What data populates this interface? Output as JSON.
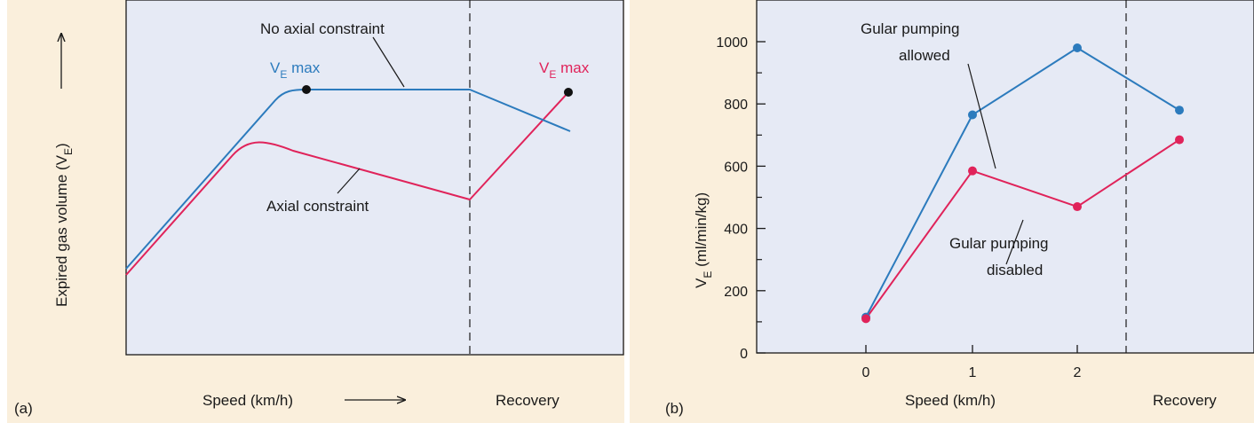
{
  "colors": {
    "blue": "#2c7bbd",
    "red": "#e0235a",
    "panel_background": "#faefdc",
    "plot_background": "#e6eaf5",
    "text": "#1a1a1a"
  },
  "chart_data": [
    {
      "type": "line",
      "panel_label": "(a)",
      "title": "",
      "ylabel_main": "Expired gas volume (V",
      "ylabel_sub": "E",
      "ylabel_close": ")",
      "xlabel": "Speed (km/h)",
      "recovery_label": "Recovery",
      "has_axis_arrows": true,
      "ticks": "none",
      "series": [
        {
          "name": "No axial constraint",
          "color": "#2c7bbd",
          "shape": "schematic",
          "max_label_main": "V",
          "max_label_sub": "E",
          "max_label_rest": " max"
        },
        {
          "name": "Axial constraint",
          "color": "#e0235a",
          "shape": "schematic",
          "max_label_main": "V",
          "max_label_sub": "E",
          "max_label_rest": " max"
        }
      ]
    },
    {
      "type": "line",
      "panel_label": "(b)",
      "title": "",
      "ylabel_main": "V",
      "ylabel_sub": "E",
      "ylabel_rest": " (ml/min/kg)",
      "xlabel": "Speed (km/h)",
      "recovery_label": "Recovery",
      "categories": [
        "0",
        "1",
        "2",
        "Recovery"
      ],
      "ylim": [
        0,
        1100
      ],
      "yticks": [
        0,
        200,
        400,
        600,
        800,
        1000
      ],
      "grid": false,
      "series": [
        {
          "name_line1": "Gular pumping",
          "name_line2": "allowed",
          "color": "#2c7bbd",
          "values": [
            115,
            765,
            980,
            780
          ]
        },
        {
          "name_line1": "Gular pumping",
          "name_line2": "disabled",
          "color": "#e0235a",
          "values": [
            110,
            585,
            470,
            685
          ]
        }
      ]
    }
  ]
}
